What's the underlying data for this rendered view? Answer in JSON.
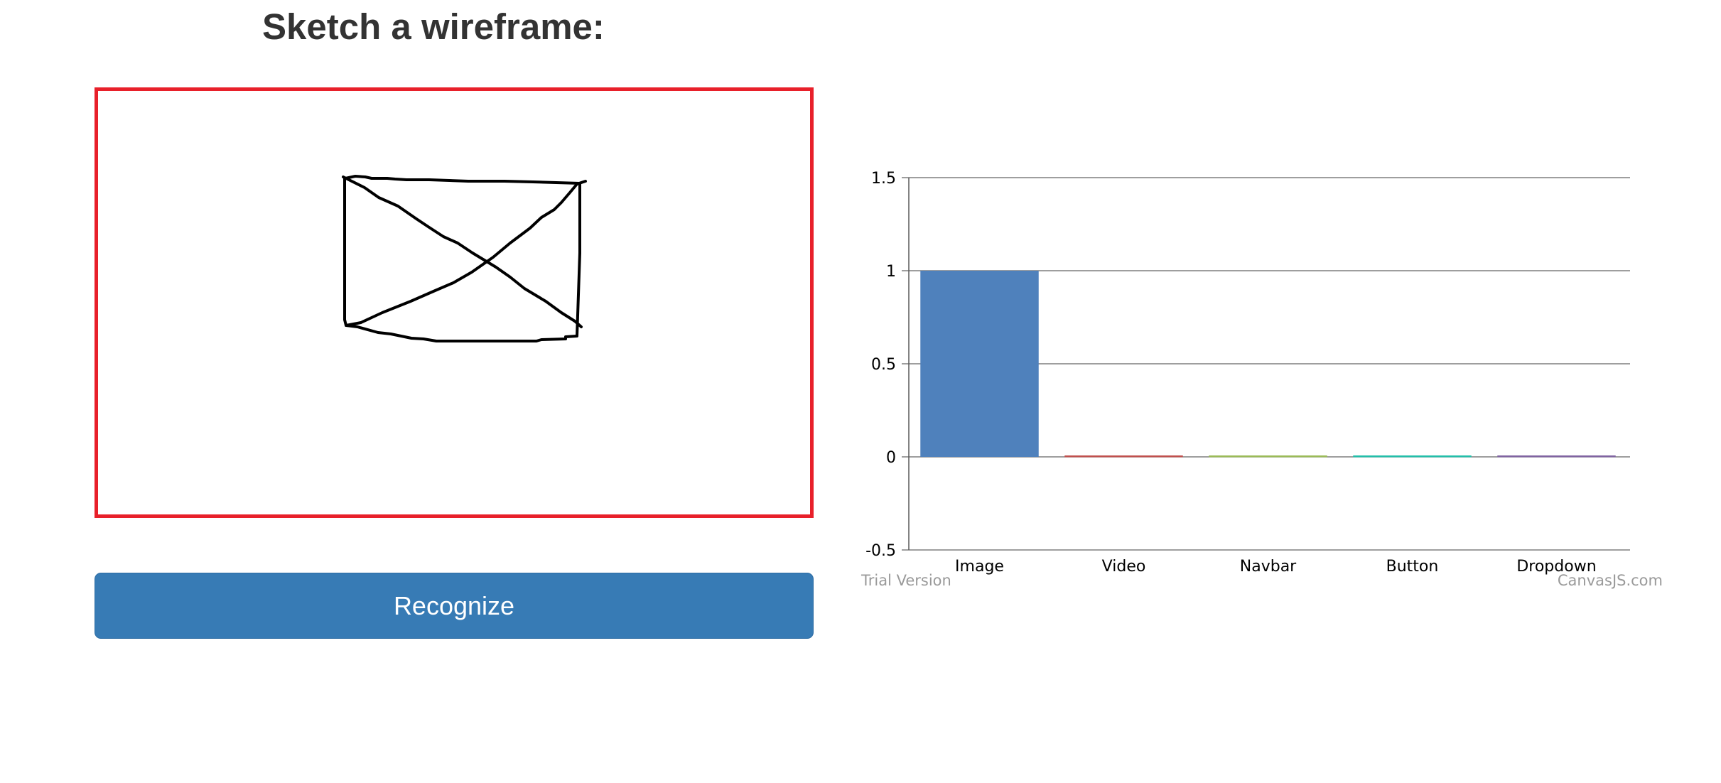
{
  "heading": "Sketch a wireframe:",
  "sketch": {
    "border_color": "#e8202a",
    "stroke_color": "#000000"
  },
  "recognize_button": {
    "label": "Recognize",
    "color": "#377bb5"
  },
  "chart_credits": {
    "left": "Trial Version",
    "right": "CanvasJS.com"
  },
  "chart_data": {
    "type": "bar",
    "categories": [
      "Image",
      "Video",
      "Navbar",
      "Button",
      "Dropdown"
    ],
    "values": [
      1,
      0,
      0,
      0,
      0
    ],
    "colors": [
      "#4f81bc",
      "#c0504e",
      "#9bbb58",
      "#23bfaa",
      "#8064a1"
    ],
    "ylim": [
      -0.5,
      1.5
    ],
    "yticks": [
      -0.5,
      0,
      0.5,
      1,
      1.5
    ],
    "ytick_labels": [
      "-0.5",
      "0",
      "0.5",
      "1",
      "1.5"
    ],
    "grid": true,
    "legend": "none",
    "title": "",
    "xlabel": "",
    "ylabel": ""
  }
}
